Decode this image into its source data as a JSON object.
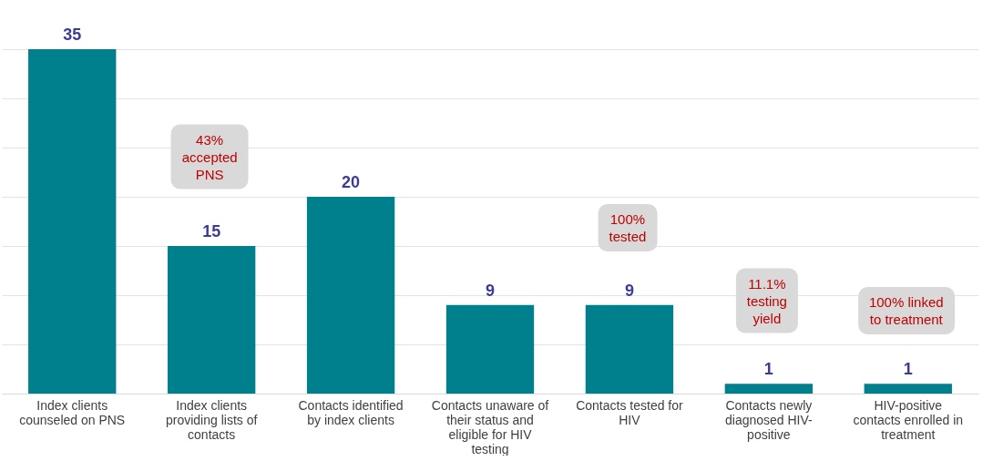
{
  "chart_data": {
    "type": "bar",
    "categories": [
      "Index clients counseled on PNS",
      "Index clients providing lists of contacts",
      "Contacts identified by index clients",
      "Contacts unaware of their status and eligible for HIV testing",
      "Contacts tested for HIV",
      "Contacts newly diagnosed HIV-positive",
      "HIV-positive contacts enrolled in treatment"
    ],
    "values": [
      35,
      15,
      20,
      9,
      9,
      1,
      1
    ],
    "color": "#007f8c",
    "data_labels": true,
    "ylim": [
      0,
      35
    ],
    "yticks": [
      {
        "value": 0,
        "label": null
      },
      {
        "value": 5,
        "label": null
      },
      {
        "value": 10,
        "label": null
      },
      {
        "value": 15,
        "label": null
      },
      {
        "value": 20,
        "label": null
      },
      {
        "value": 25,
        "label": null
      },
      {
        "value": 30,
        "label": null
      },
      {
        "value": 35,
        "label": null
      }
    ],
    "grid": "y",
    "tick_labels": "x",
    "annotations": [
      "43%\naccepted\nPNS",
      "100%\ntested",
      "11.1%\ntesting\nyield",
      "100% linked\nto treatment"
    ]
  }
}
